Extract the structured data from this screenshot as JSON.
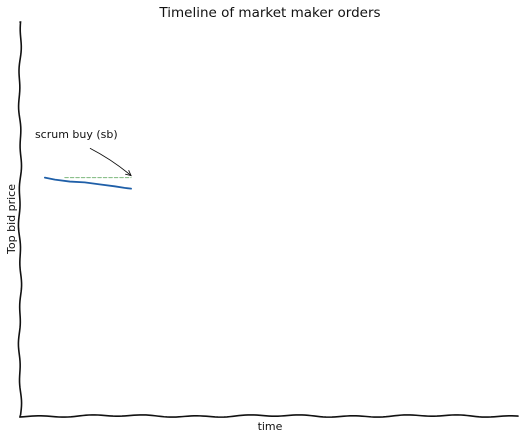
{
  "chart_data": {
    "type": "line",
    "title": "Timeline of market maker orders",
    "xlabel": "time",
    "ylabel": "Top bid price",
    "xlim": [
      0,
      100
    ],
    "ylim": [
      0,
      100
    ],
    "grid": false,
    "legend": "none",
    "xticks": [],
    "yticks": [],
    "series": [
      {
        "style": "solid",
        "color": "#1f5fa8",
        "points": [
          [
            5,
            60.5
          ],
          [
            7,
            60.0
          ],
          [
            10,
            59.5
          ],
          [
            13,
            59.3
          ],
          [
            16,
            58.8
          ],
          [
            19,
            58.3
          ],
          [
            21,
            57.9
          ],
          [
            22.3,
            57.7
          ]
        ]
      },
      {
        "style": "dashed",
        "color": "#7cb87c",
        "points": [
          [
            9,
            60.5
          ],
          [
            22.3,
            60.5
          ]
        ]
      }
    ],
    "annotations": [
      {
        "text": "scrum buy (sb)",
        "text_at": [
          3,
          70.5
        ],
        "arrow_to": [
          22.3,
          60.5
        ]
      }
    ]
  }
}
